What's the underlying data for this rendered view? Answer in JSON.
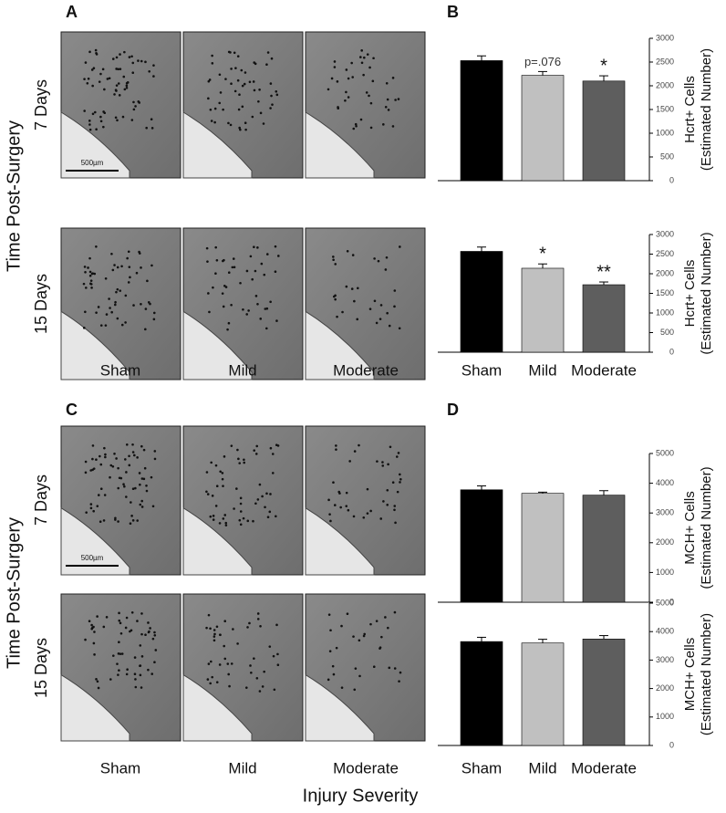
{
  "panels": {
    "a": "A",
    "b": "B",
    "c": "C",
    "d": "D"
  },
  "row_axis_label": [
    "Time Post-Surgery",
    "Time Post-Surgery"
  ],
  "rows": {
    "a": [
      "7 Days",
      "15 Days"
    ],
    "c": [
      "7 Days",
      "15 Days"
    ]
  },
  "columns": {
    "a": [
      "Sham",
      "Mild",
      "Moderate"
    ],
    "c": [
      "Sham",
      "Mild",
      "Moderate"
    ]
  },
  "scale_bar": [
    "500µm",
    "500µm"
  ],
  "x_axis_label": "Injury Severity",
  "chart_data": [
    {
      "type": "bar",
      "categories": [
        null,
        null,
        null
      ],
      "values": [
        2530,
        2220,
        2100
      ],
      "errors": [
        100,
        80,
        110
      ],
      "colors": [
        "#000000",
        "#c0c0c0",
        "#5e5e5e"
      ],
      "annotations": [
        null,
        "p=.076",
        "*"
      ],
      "ylabel": [
        "Hcrt+ Cells",
        "(Estimated Number)"
      ],
      "ylim": [
        0,
        3000
      ],
      "yticks": [
        0,
        500,
        1000,
        1500,
        2000,
        2500,
        3000
      ]
    },
    {
      "type": "bar",
      "categories": [
        "Sham",
        "Mild",
        "Moderate"
      ],
      "values": [
        2570,
        2140,
        1720
      ],
      "errors": [
        110,
        110,
        70
      ],
      "colors": [
        "#000000",
        "#c0c0c0",
        "#5e5e5e"
      ],
      "annotations": [
        null,
        "*",
        "**"
      ],
      "ylabel": [
        "Hcrt+ Cells",
        "(Estimated Number)"
      ],
      "ylim": [
        0,
        3000
      ],
      "yticks": [
        0,
        500,
        1000,
        1500,
        2000,
        2500,
        3000
      ]
    },
    {
      "type": "bar",
      "categories": [
        null,
        null,
        null
      ],
      "values": [
        3780,
        3660,
        3600
      ],
      "errors": [
        130,
        40,
        150
      ],
      "colors": [
        "#000000",
        "#c0c0c0",
        "#5e5e5e"
      ],
      "ylabel": [
        "MCH+ Cells",
        "(Estimated Number)"
      ],
      "ylim": [
        0,
        5000
      ],
      "yticks": [
        0,
        1000,
        2000,
        3000,
        4000,
        5000
      ]
    },
    {
      "type": "bar",
      "categories": [
        "Sham",
        "Mild",
        "Moderate"
      ],
      "values": [
        3650,
        3600,
        3740
      ],
      "errors": [
        150,
        130,
        120
      ],
      "colors": [
        "#000000",
        "#c0c0c0",
        "#5e5e5e"
      ],
      "ylabel": [
        "MCH+ Cells",
        "(Estimated Number)"
      ],
      "ylim": [
        0,
        5000
      ],
      "yticks": [
        0,
        1000,
        2000,
        3000,
        4000,
        5000
      ]
    }
  ]
}
